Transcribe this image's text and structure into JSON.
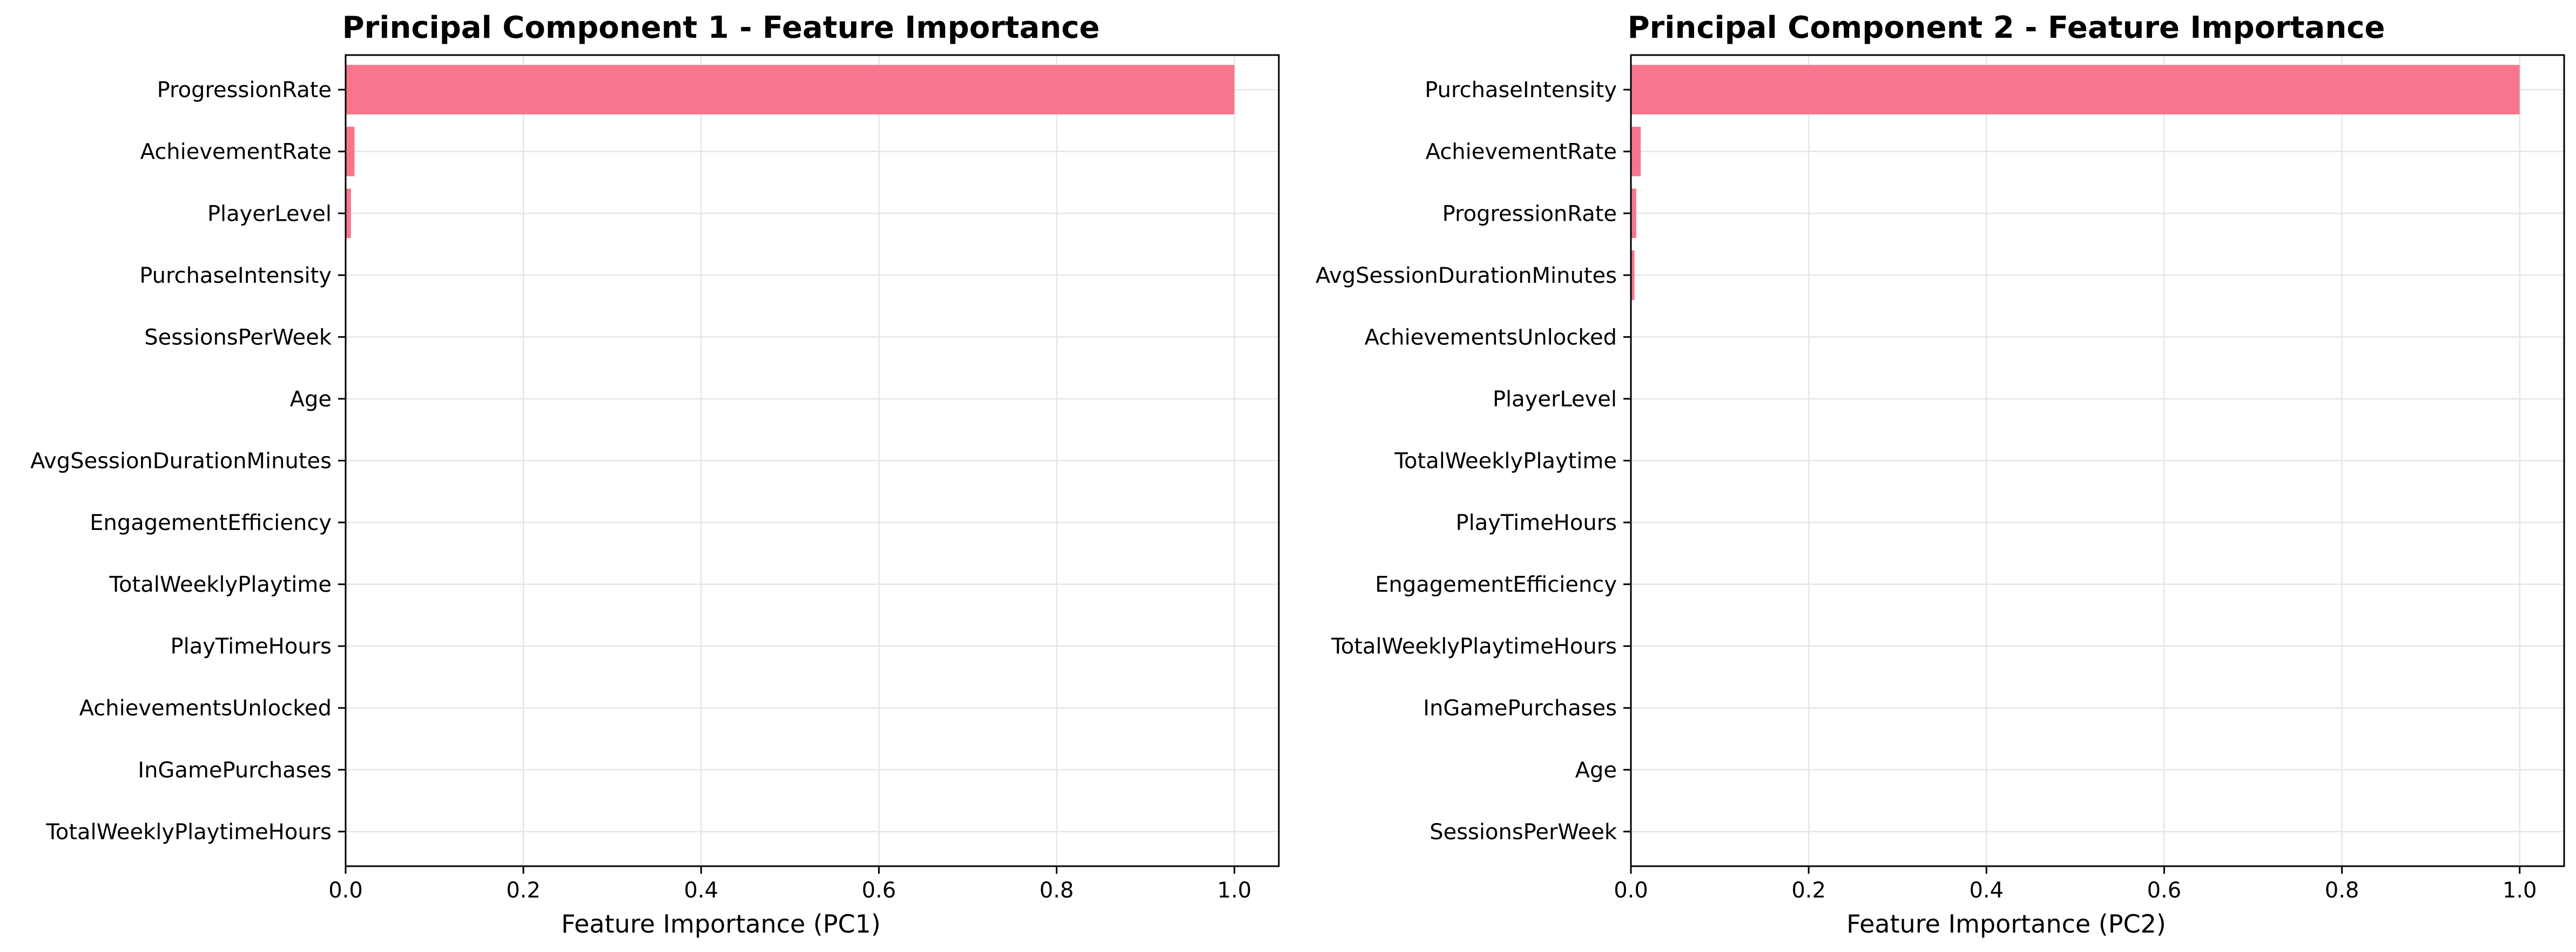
{
  "chart_data": [
    {
      "type": "bar",
      "orientation": "horizontal",
      "title": "Principal Component 1 - Feature Importance",
      "xlabel": "Feature Importance (PC1)",
      "ylabel": "",
      "xlim": [
        0,
        1.05
      ],
      "xticks": [
        "0.0",
        "0.2",
        "0.4",
        "0.6",
        "0.8",
        "1.0"
      ],
      "grid": true,
      "bar_color": "#f7768e",
      "categories": [
        "ProgressionRate",
        "AchievementRate",
        "PlayerLevel",
        "PurchaseIntensity",
        "SessionsPerWeek",
        "Age",
        "AvgSessionDurationMinutes",
        "EngagementEfficiency",
        "TotalWeeklyPlaytime",
        "PlayTimeHours",
        "AchievementsUnlocked",
        "InGamePurchases",
        "TotalWeeklyPlaytimeHours"
      ],
      "values": [
        1.0,
        0.01,
        0.006,
        0.0005,
        0.0004,
        0.0003,
        0.0002,
        0.0002,
        0.0001,
        0.0001,
        0.0001,
        0.0001,
        0.0001
      ]
    },
    {
      "type": "bar",
      "orientation": "horizontal",
      "title": "Principal Component 2 - Feature Importance",
      "xlabel": "Feature Importance (PC2)",
      "ylabel": "",
      "xlim": [
        0,
        1.05
      ],
      "xticks": [
        "0.0",
        "0.2",
        "0.4",
        "0.6",
        "0.8",
        "1.0"
      ],
      "grid": true,
      "bar_color": "#f7768e",
      "categories": [
        "PurchaseIntensity",
        "AchievementRate",
        "ProgressionRate",
        "AvgSessionDurationMinutes",
        "AchievementsUnlocked",
        "PlayerLevel",
        "TotalWeeklyPlaytime",
        "PlayTimeHours",
        "EngagementEfficiency",
        "TotalWeeklyPlaytimeHours",
        "InGamePurchases",
        "Age",
        "SessionsPerWeek"
      ],
      "values": [
        1.0,
        0.011,
        0.006,
        0.004,
        0.0005,
        0.0004,
        0.0003,
        0.0002,
        0.0002,
        0.0001,
        0.0001,
        0.0001,
        0.0001
      ]
    }
  ]
}
